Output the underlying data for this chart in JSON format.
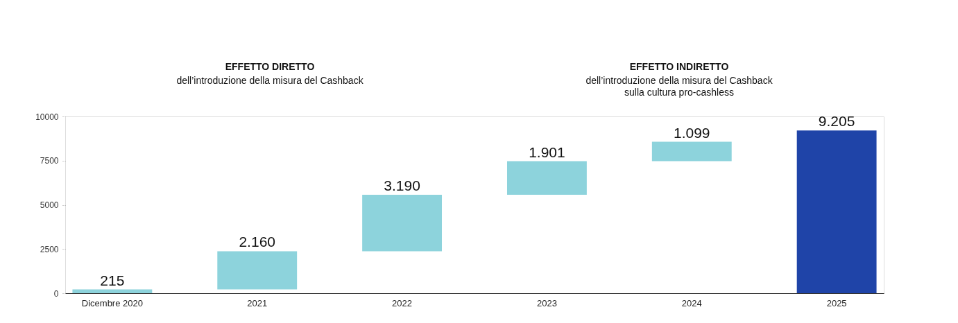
{
  "chart_data": {
    "type": "bar",
    "categories": [
      "Dicembre 2020",
      "2021",
      "2022",
      "2023",
      "2024",
      "2025"
    ],
    "values": [
      215,
      2160,
      3190,
      1901,
      1099,
      9205
    ],
    "base": [
      0,
      215,
      2375,
      5565,
      7466,
      0
    ],
    "colors": [
      "#8dd3dc",
      "#8dd3dc",
      "#8dd3dc",
      "#8dd3dc",
      "#8dd3dc",
      "#1f44a8"
    ],
    "value_labels": [
      "215",
      "2.160",
      "3.190",
      "1.901",
      "1.099",
      "9.205"
    ],
    "ylim": [
      0,
      10000
    ],
    "yticks": [
      0,
      2500,
      5000,
      7500,
      10000
    ],
    "grid": false,
    "annotations": [
      "EFFETTO DIRETTO",
      "dell’introduzione della misura del Cashback",
      "EFFETTO INDIRETTO",
      "dell’introduzione della misura del Cashback\nsulla cultura pro-cashless"
    ]
  }
}
